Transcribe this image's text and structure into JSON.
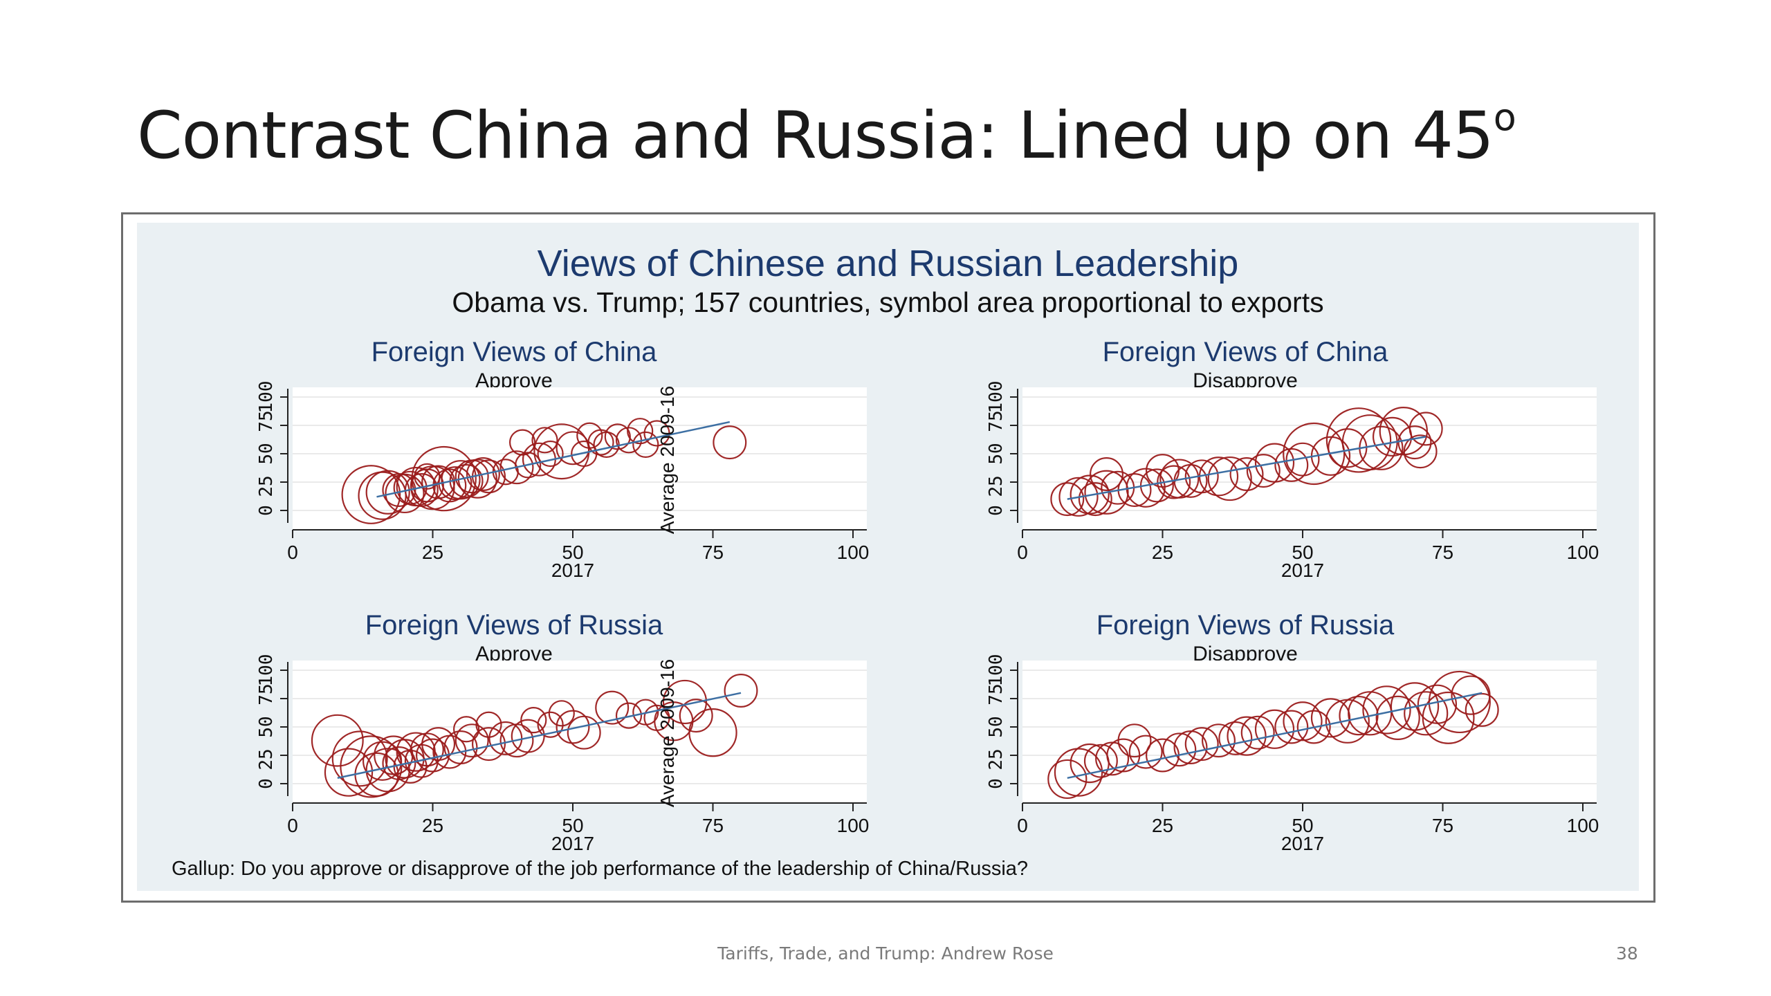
{
  "slide": {
    "title": "Contrast China and Russia: Lined up on 45",
    "title_superscript": "o",
    "footer": "Tariffs, Trade, and Trump: Andrew Rose",
    "page_number": "38"
  },
  "figure": {
    "title": "Views of Chinese and Russian Leadership",
    "subtitle": "Obama vs. Trump; 157 countries, symbol area proportional to exports",
    "note": "Gallup: Do you approve or disapprove of the job performance of the leadership of China/Russia?"
  },
  "colors": {
    "marker": "#9b1c1c",
    "fit_line": "#3d6fa3",
    "plot_bg": "#ffffff",
    "outer_bg": "#eaf0f3",
    "title_text": "#1c3a6e"
  },
  "chart_data": [
    {
      "type": "scatter",
      "title": "Foreign Views of China",
      "subtitle": "Approve",
      "xlabel": "2017",
      "ylabel": "Average 2009-16",
      "xlim": [
        0,
        100
      ],
      "ylim": [
        0,
        100
      ],
      "xticks": [
        "0",
        "25",
        "50",
        "75",
        "100"
      ],
      "yticks": [
        "0",
        "25 50 75",
        "100"
      ],
      "fit_line": [
        [
          15,
          12
        ],
        [
          78,
          78
        ]
      ],
      "points": [
        {
          "x": 14,
          "y": 14,
          "size": 8
        },
        {
          "x": 16,
          "y": 13,
          "size": 5
        },
        {
          "x": 17,
          "y": 16,
          "size": 4
        },
        {
          "x": 19,
          "y": 18,
          "size": 2
        },
        {
          "x": 20,
          "y": 15,
          "size": 3
        },
        {
          "x": 21,
          "y": 20,
          "size": 2
        },
        {
          "x": 22,
          "y": 21,
          "size": 3
        },
        {
          "x": 23,
          "y": 18,
          "size": 2
        },
        {
          "x": 24,
          "y": 22,
          "size": 2
        },
        {
          "x": 25,
          "y": 20,
          "size": 4
        },
        {
          "x": 26,
          "y": 25,
          "size": 2
        },
        {
          "x": 27,
          "y": 28,
          "size": 10
        },
        {
          "x": 28,
          "y": 22,
          "size": 2
        },
        {
          "x": 29,
          "y": 24,
          "size": 2
        },
        {
          "x": 30,
          "y": 27,
          "size": 3
        },
        {
          "x": 31,
          "y": 26,
          "size": 2
        },
        {
          "x": 32,
          "y": 30,
          "size": 2
        },
        {
          "x": 33,
          "y": 28,
          "size": 3
        },
        {
          "x": 34,
          "y": 32,
          "size": 2
        },
        {
          "x": 35,
          "y": 30,
          "size": 2
        },
        {
          "x": 24,
          "y": 30,
          "size": 1
        },
        {
          "x": 38,
          "y": 34,
          "size": 1
        },
        {
          "x": 40,
          "y": 38,
          "size": 2
        },
        {
          "x": 42,
          "y": 40,
          "size": 1
        },
        {
          "x": 44,
          "y": 45,
          "size": 2
        },
        {
          "x": 46,
          "y": 50,
          "size": 1
        },
        {
          "x": 48,
          "y": 52,
          "size": 7
        },
        {
          "x": 50,
          "y": 55,
          "size": 2
        },
        {
          "x": 52,
          "y": 50,
          "size": 1
        },
        {
          "x": 55,
          "y": 60,
          "size": 1
        },
        {
          "x": 58,
          "y": 65,
          "size": 1
        },
        {
          "x": 60,
          "y": 62,
          "size": 1
        },
        {
          "x": 62,
          "y": 70,
          "size": 1
        },
        {
          "x": 65,
          "y": 68,
          "size": 1
        },
        {
          "x": 41,
          "y": 60,
          "size": 1
        },
        {
          "x": 45,
          "y": 62,
          "size": 1
        },
        {
          "x": 53,
          "y": 66,
          "size": 1
        },
        {
          "x": 56,
          "y": 58,
          "size": 1
        },
        {
          "x": 63,
          "y": 58,
          "size": 1
        },
        {
          "x": 78,
          "y": 60,
          "size": 2
        }
      ]
    },
    {
      "type": "scatter",
      "title": "Foreign Views of China",
      "subtitle": "Disapprove",
      "xlabel": "2017",
      "ylabel": "",
      "xlim": [
        0,
        100
      ],
      "ylim": [
        0,
        100
      ],
      "xticks": [
        "0",
        "25",
        "50",
        "75",
        "100"
      ],
      "yticks": [
        "0",
        "25 50 75",
        "100"
      ],
      "fit_line": [
        [
          8,
          10
        ],
        [
          72,
          65
        ]
      ],
      "points": [
        {
          "x": 8,
          "y": 10,
          "size": 2
        },
        {
          "x": 10,
          "y": 12,
          "size": 3
        },
        {
          "x": 12,
          "y": 14,
          "size": 3
        },
        {
          "x": 13,
          "y": 10,
          "size": 2
        },
        {
          "x": 15,
          "y": 16,
          "size": 4
        },
        {
          "x": 15,
          "y": 32,
          "size": 2
        },
        {
          "x": 17,
          "y": 20,
          "size": 2
        },
        {
          "x": 20,
          "y": 18,
          "size": 2
        },
        {
          "x": 22,
          "y": 20,
          "size": 3
        },
        {
          "x": 24,
          "y": 22,
          "size": 2
        },
        {
          "x": 25,
          "y": 35,
          "size": 2
        },
        {
          "x": 27,
          "y": 25,
          "size": 2
        },
        {
          "x": 28,
          "y": 28,
          "size": 3
        },
        {
          "x": 30,
          "y": 26,
          "size": 2
        },
        {
          "x": 32,
          "y": 30,
          "size": 2
        },
        {
          "x": 35,
          "y": 30,
          "size": 3
        },
        {
          "x": 37,
          "y": 28,
          "size": 4
        },
        {
          "x": 40,
          "y": 32,
          "size": 2
        },
        {
          "x": 43,
          "y": 35,
          "size": 2
        },
        {
          "x": 45,
          "y": 42,
          "size": 3
        },
        {
          "x": 48,
          "y": 40,
          "size": 2
        },
        {
          "x": 50,
          "y": 45,
          "size": 2
        },
        {
          "x": 52,
          "y": 50,
          "size": 9
        },
        {
          "x": 55,
          "y": 48,
          "size": 3
        },
        {
          "x": 58,
          "y": 55,
          "size": 3
        },
        {
          "x": 60,
          "y": 62,
          "size": 10
        },
        {
          "x": 62,
          "y": 60,
          "size": 7
        },
        {
          "x": 64,
          "y": 55,
          "size": 4
        },
        {
          "x": 66,
          "y": 65,
          "size": 3
        },
        {
          "x": 68,
          "y": 70,
          "size": 5
        },
        {
          "x": 70,
          "y": 60,
          "size": 2
        },
        {
          "x": 72,
          "y": 72,
          "size": 2
        },
        {
          "x": 71,
          "y": 52,
          "size": 2
        }
      ]
    },
    {
      "type": "scatter",
      "title": "Foreign Views of Russia",
      "subtitle": "Approve",
      "xlabel": "2017",
      "ylabel": "Average 2009-16",
      "xlim": [
        0,
        100
      ],
      "ylim": [
        0,
        100
      ],
      "xticks": [
        "0",
        "25",
        "50",
        "75",
        "100"
      ],
      "yticks": [
        "0",
        "25 50 75",
        "100"
      ],
      "fit_line": [
        [
          8,
          5
        ],
        [
          80,
          80
        ]
      ],
      "points": [
        {
          "x": 8,
          "y": 38,
          "size": 6
        },
        {
          "x": 10,
          "y": 10,
          "size": 5
        },
        {
          "x": 12,
          "y": 22,
          "size": 7
        },
        {
          "x": 14,
          "y": 15,
          "size": 9
        },
        {
          "x": 15,
          "y": 8,
          "size": 4
        },
        {
          "x": 16,
          "y": 20,
          "size": 3
        },
        {
          "x": 17,
          "y": 12,
          "size": 4
        },
        {
          "x": 18,
          "y": 25,
          "size": 3
        },
        {
          "x": 19,
          "y": 18,
          "size": 2
        },
        {
          "x": 20,
          "y": 22,
          "size": 3
        },
        {
          "x": 21,
          "y": 15,
          "size": 2
        },
        {
          "x": 22,
          "y": 28,
          "size": 3
        },
        {
          "x": 23,
          "y": 20,
          "size": 2
        },
        {
          "x": 24,
          "y": 30,
          "size": 2
        },
        {
          "x": 25,
          "y": 25,
          "size": 2
        },
        {
          "x": 26,
          "y": 35,
          "size": 2
        },
        {
          "x": 28,
          "y": 28,
          "size": 2
        },
        {
          "x": 30,
          "y": 32,
          "size": 2
        },
        {
          "x": 32,
          "y": 38,
          "size": 2
        },
        {
          "x": 35,
          "y": 35,
          "size": 2
        },
        {
          "x": 38,
          "y": 40,
          "size": 2
        },
        {
          "x": 40,
          "y": 38,
          "size": 2
        },
        {
          "x": 42,
          "y": 42,
          "size": 2
        },
        {
          "x": 31,
          "y": 48,
          "size": 1
        },
        {
          "x": 35,
          "y": 52,
          "size": 1
        },
        {
          "x": 43,
          "y": 56,
          "size": 1
        },
        {
          "x": 46,
          "y": 52,
          "size": 1
        },
        {
          "x": 48,
          "y": 62,
          "size": 1
        },
        {
          "x": 50,
          "y": 50,
          "size": 2
        },
        {
          "x": 52,
          "y": 45,
          "size": 2
        },
        {
          "x": 57,
          "y": 67,
          "size": 2
        },
        {
          "x": 60,
          "y": 60,
          "size": 1
        },
        {
          "x": 63,
          "y": 63,
          "size": 1
        },
        {
          "x": 65,
          "y": 58,
          "size": 1
        },
        {
          "x": 68,
          "y": 55,
          "size": 3
        },
        {
          "x": 70,
          "y": 72,
          "size": 4
        },
        {
          "x": 72,
          "y": 60,
          "size": 2
        },
        {
          "x": 75,
          "y": 45,
          "size": 5
        },
        {
          "x": 80,
          "y": 82,
          "size": 2
        }
      ]
    },
    {
      "type": "scatter",
      "title": "Foreign Views of Russia",
      "subtitle": "Disapprove",
      "xlabel": "2017",
      "ylabel": "",
      "xlim": [
        0,
        100
      ],
      "ylim": [
        0,
        100
      ],
      "xticks": [
        "0",
        "25",
        "50",
        "75",
        "100"
      ],
      "yticks": [
        "0",
        "25 50 75",
        "100"
      ],
      "fit_line": [
        [
          8,
          5
        ],
        [
          82,
          80
        ]
      ],
      "points": [
        {
          "x": 8,
          "y": 4,
          "size": 3
        },
        {
          "x": 10,
          "y": 10,
          "size": 5
        },
        {
          "x": 12,
          "y": 18,
          "size": 3
        },
        {
          "x": 14,
          "y": 20,
          "size": 2
        },
        {
          "x": 16,
          "y": 22,
          "size": 2
        },
        {
          "x": 18,
          "y": 25,
          "size": 2
        },
        {
          "x": 20,
          "y": 38,
          "size": 2
        },
        {
          "x": 22,
          "y": 28,
          "size": 2
        },
        {
          "x": 25,
          "y": 25,
          "size": 2
        },
        {
          "x": 28,
          "y": 30,
          "size": 2
        },
        {
          "x": 30,
          "y": 32,
          "size": 2
        },
        {
          "x": 32,
          "y": 35,
          "size": 2
        },
        {
          "x": 35,
          "y": 38,
          "size": 2
        },
        {
          "x": 38,
          "y": 40,
          "size": 2
        },
        {
          "x": 40,
          "y": 42,
          "size": 3
        },
        {
          "x": 42,
          "y": 45,
          "size": 2
        },
        {
          "x": 45,
          "y": 48,
          "size": 3
        },
        {
          "x": 48,
          "y": 50,
          "size": 2
        },
        {
          "x": 50,
          "y": 55,
          "size": 3
        },
        {
          "x": 52,
          "y": 50,
          "size": 2
        },
        {
          "x": 55,
          "y": 58,
          "size": 3
        },
        {
          "x": 58,
          "y": 55,
          "size": 4
        },
        {
          "x": 60,
          "y": 60,
          "size": 3
        },
        {
          "x": 62,
          "y": 62,
          "size": 4
        },
        {
          "x": 65,
          "y": 65,
          "size": 5
        },
        {
          "x": 67,
          "y": 58,
          "size": 4
        },
        {
          "x": 70,
          "y": 68,
          "size": 5
        },
        {
          "x": 72,
          "y": 62,
          "size": 4
        },
        {
          "x": 74,
          "y": 70,
          "size": 3
        },
        {
          "x": 76,
          "y": 58,
          "size": 6
        },
        {
          "x": 78,
          "y": 72,
          "size": 9
        },
        {
          "x": 80,
          "y": 78,
          "size": 3
        },
        {
          "x": 82,
          "y": 65,
          "size": 2
        }
      ]
    }
  ]
}
